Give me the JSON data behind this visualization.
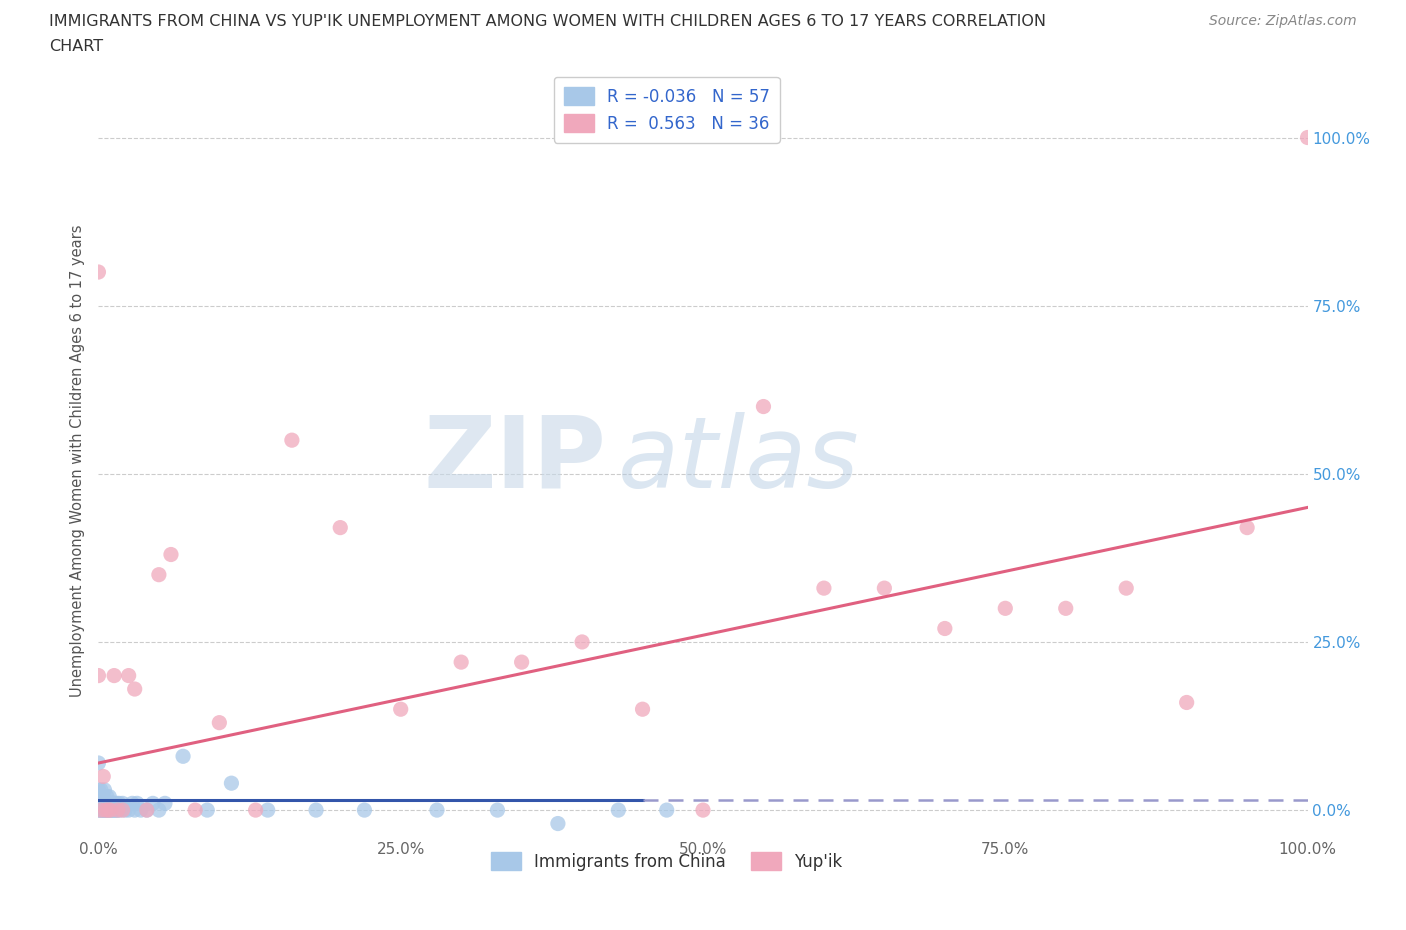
{
  "title_line1": "IMMIGRANTS FROM CHINA VS YUP'IK UNEMPLOYMENT AMONG WOMEN WITH CHILDREN AGES 6 TO 17 YEARS CORRELATION",
  "title_line2": "CHART",
  "source": "Source: ZipAtlas.com",
  "ylabel": "Unemployment Among Women with Children Ages 6 to 17 years",
  "xlim": [
    0.0,
    1.0
  ],
  "ylim": [
    -0.04,
    1.08
  ],
  "xtick_labels": [
    "0.0%",
    "25.0%",
    "50.0%",
    "75.0%",
    "100.0%"
  ],
  "xtick_vals": [
    0.0,
    0.25,
    0.5,
    0.75,
    1.0
  ],
  "ytick_vals": [
    0.0,
    0.25,
    0.5,
    0.75,
    1.0
  ],
  "right_ytick_labels": [
    "0.0%",
    "25.0%",
    "50.0%",
    "75.0%",
    "100.0%"
  ],
  "watermark_zip": "ZIP",
  "watermark_atlas": "atlas",
  "color_blue": "#A8C8E8",
  "color_pink": "#F0A8BC",
  "trend_blue_solid": "#3355AA",
  "trend_blue_dashed": "#9999CC",
  "trend_pink": "#E06080",
  "grid_color": "#CCCCCC",
  "bg_color": "#FFFFFF",
  "title_color": "#333333",
  "right_tick_color": "#4499DD",
  "blue_x": [
    0.0,
    0.0,
    0.001,
    0.001,
    0.002,
    0.002,
    0.003,
    0.003,
    0.004,
    0.004,
    0.005,
    0.005,
    0.005,
    0.006,
    0.006,
    0.007,
    0.007,
    0.008,
    0.008,
    0.009,
    0.009,
    0.01,
    0.01,
    0.011,
    0.011,
    0.012,
    0.013,
    0.013,
    0.014,
    0.015,
    0.015,
    0.016,
    0.017,
    0.018,
    0.02,
    0.022,
    0.025,
    0.028,
    0.03,
    0.032,
    0.035,
    0.04,
    0.045,
    0.05,
    0.055,
    0.07,
    0.09,
    0.11,
    0.14,
    0.18,
    0.22,
    0.28,
    0.33,
    0.38,
    0.43,
    0.47,
    0.0
  ],
  "blue_y": [
    0.0,
    0.07,
    0.0,
    0.02,
    0.0,
    0.03,
    0.0,
    0.01,
    0.0,
    0.02,
    0.0,
    0.0,
    0.03,
    0.0,
    0.01,
    0.0,
    0.02,
    0.0,
    0.01,
    0.0,
    0.02,
    0.0,
    0.01,
    0.0,
    0.01,
    0.0,
    0.0,
    0.01,
    0.0,
    0.0,
    0.01,
    0.0,
    0.01,
    0.0,
    0.01,
    0.0,
    0.0,
    0.01,
    0.0,
    0.01,
    0.0,
    0.0,
    0.01,
    0.0,
    0.01,
    0.08,
    0.0,
    0.04,
    0.0,
    0.0,
    0.0,
    0.0,
    0.0,
    -0.02,
    0.0,
    0.0,
    0.03
  ],
  "pink_x": [
    0.0,
    0.002,
    0.004,
    0.006,
    0.008,
    0.01,
    0.013,
    0.016,
    0.02,
    0.025,
    0.03,
    0.04,
    0.05,
    0.06,
    0.08,
    0.1,
    0.13,
    0.16,
    0.2,
    0.25,
    0.3,
    0.35,
    0.4,
    0.45,
    0.5,
    0.55,
    0.6,
    0.65,
    0.7,
    0.75,
    0.8,
    0.85,
    0.9,
    0.95,
    1.0,
    0.0
  ],
  "pink_y": [
    0.2,
    0.0,
    0.05,
    0.0,
    0.0,
    0.0,
    0.2,
    0.0,
    0.0,
    0.2,
    0.18,
    0.0,
    0.35,
    0.38,
    0.0,
    0.13,
    0.0,
    0.55,
    0.42,
    0.15,
    0.22,
    0.22,
    0.25,
    0.15,
    0.0,
    0.6,
    0.33,
    0.33,
    0.27,
    0.3,
    0.3,
    0.33,
    0.16,
    0.42,
    1.0,
    0.8
  ]
}
